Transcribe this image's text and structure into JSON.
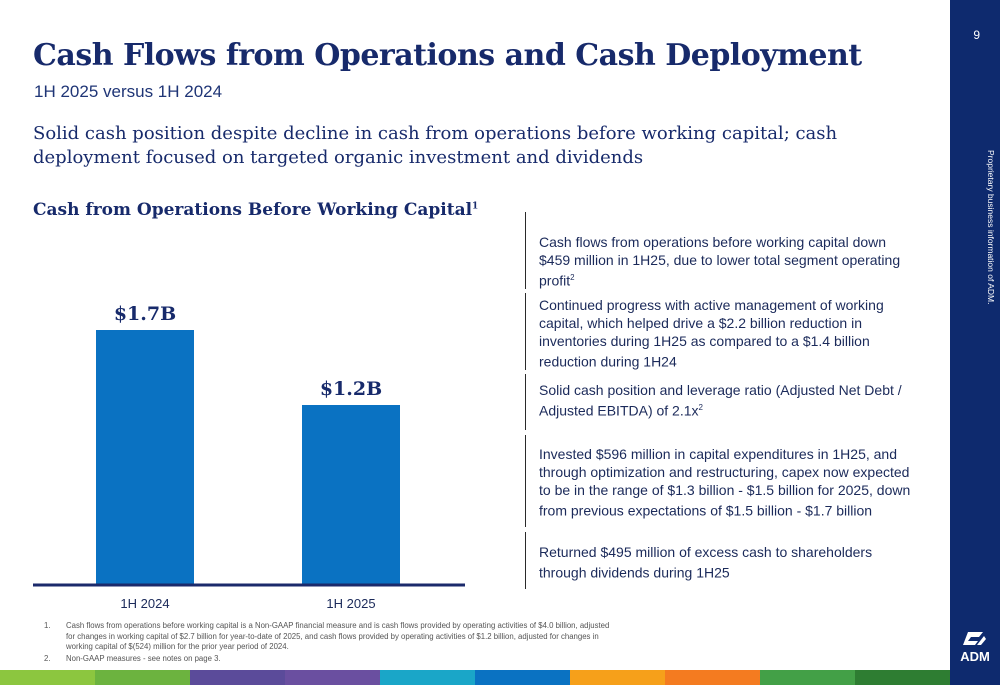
{
  "slide": {
    "title": "Cash Flows from Operations and Cash Deployment",
    "subtitle": "1H 2025 versus 1H 2024",
    "headline": "Solid cash position despite decline in cash from operations before working capital; cash deployment focused on targeted organic investment and dividends",
    "page_number": "9",
    "proprietary_note": "Proprietary business information of ADM.",
    "logo_text": "ADM"
  },
  "chart_data": {
    "type": "bar",
    "title": "Cash from Operations Before Working Capital",
    "title_footnote": "1",
    "categories": [
      "1H 2024",
      "1H 2025"
    ],
    "values": [
      1.7,
      1.2
    ],
    "value_labels": [
      "$1.7B",
      "$1.2B"
    ],
    "ylim": [
      0,
      1.9
    ],
    "grid": false,
    "bar_color": "#0a72c2",
    "axis_color": "#1b2a6b"
  },
  "bullets": [
    {
      "text": "Cash flows from operations before working capital down $459 million in 1H25, due to lower total segment operating profit",
      "sup": "2"
    },
    {
      "text": "Continued progress with active management of working capital, which helped drive a $2.2 billion reduction in inventories during 1H25 as compared to a $1.4 billion reduction during 1H24",
      "sup": ""
    },
    {
      "text": "Solid cash position and leverage ratio (Adjusted Net Debt / Adjusted EBITDA) of 2.1x",
      "sup": "2"
    },
    {
      "text": "Invested $596 million in capital expenditures in 1H25, and through optimization and restructuring, capex now expected to be in the range of $1.3 billion - $1.5 billion for 2025, down from previous expectations of $1.5 billion - $1.7 billion",
      "sup": ""
    },
    {
      "text": "Returned $495 million of excess cash to shareholders through dividends during 1H25",
      "sup": ""
    }
  ],
  "footnotes": [
    {
      "num": "1.",
      "text": "Cash flows from operations before working capital is a Non-GAAP financial measure and is cash flows provided by operating activities of $4.0 billion, adjusted for changes in working capital of $2.7 billion for year-to-date of 2025, and cash flows provided by operating activities of $1.2 billion, adjusted for changes in working capital of $(524) million for the prior year period of 2024."
    },
    {
      "num": "2.",
      "text": "Non-GAAP measures - see notes on page 3."
    }
  ],
  "colors": {
    "navy": "#0e2a6e",
    "strip": [
      "#8cc63f",
      "#6cb33f",
      "#5b4b9a",
      "#6a4fa0",
      "#1aa6c8",
      "#0a72c2",
      "#f6a01a",
      "#f47b20",
      "#43a047",
      "#2e7d32"
    ]
  }
}
